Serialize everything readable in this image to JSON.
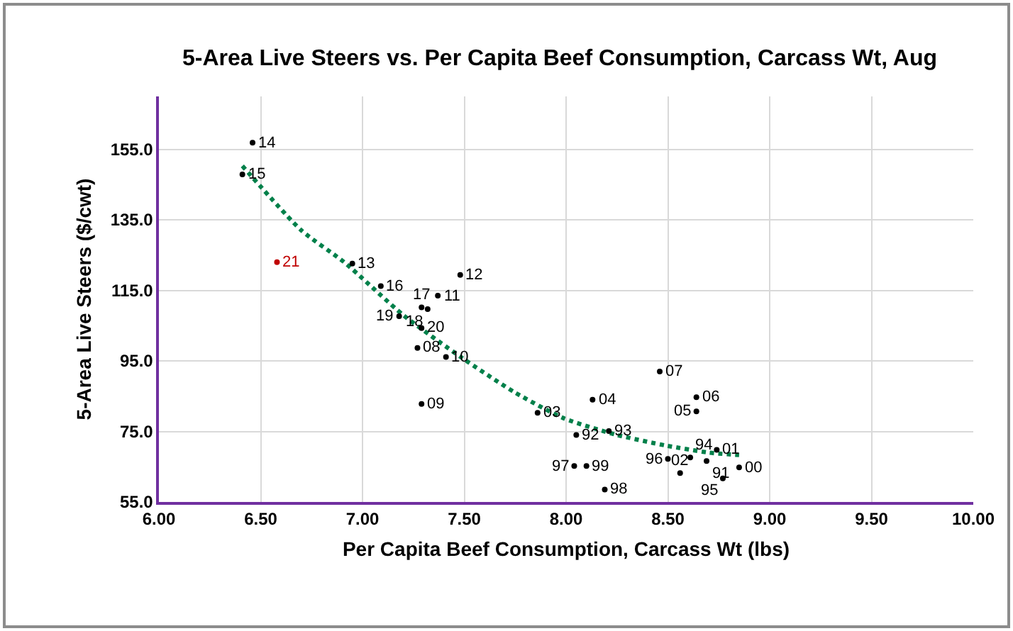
{
  "chart_data": {
    "type": "scatter",
    "title": "5-Area Live Steers vs. Per Capita Beef Consumption, Carcass Wt, Aug",
    "xlabel": "Per Capita Beef Consumption, Carcass Wt (lbs)",
    "ylabel": "5-Area Live Steers ($/cwt)",
    "xlim": [
      6,
      10
    ],
    "xticks": [
      {
        "value": 6,
        "label": "6.00"
      },
      {
        "value": 6.5,
        "label": "6.50"
      },
      {
        "value": 7,
        "label": "7.00"
      },
      {
        "value": 7.5,
        "label": "7.50"
      },
      {
        "value": 8,
        "label": "8.00"
      },
      {
        "value": 8.5,
        "label": "8.50"
      },
      {
        "value": 9,
        "label": "9.00"
      },
      {
        "value": 9.5,
        "label": "9.50"
      },
      {
        "value": 10,
        "label": "10.00"
      }
    ],
    "ylim": [
      55,
      170
    ],
    "yticks": [
      {
        "value": 55,
        "label": "55.0"
      },
      {
        "value": 75,
        "label": "75.0"
      },
      {
        "value": 95,
        "label": "95.0"
      },
      {
        "value": 115,
        "label": "115.0"
      },
      {
        "value": 135,
        "label": "135.0"
      },
      {
        "value": 155,
        "label": "155.0"
      }
    ],
    "grid": true,
    "series": [
      {
        "marker": "circle",
        "x": [
          6.46,
          6.41,
          6.58,
          6.95,
          7.09,
          7.48,
          7.37,
          7.29,
          7.32,
          7.18,
          7.29,
          7.27,
          7.41,
          7.29,
          7.86,
          8.46,
          8.13,
          8.64,
          8.64,
          8.05,
          8.21,
          8.04,
          8.1,
          8.19,
          8.5,
          8.56,
          8.61,
          8.69,
          8.74,
          8.77,
          8.85
        ],
        "values": [
          156.9,
          147.9,
          123.0,
          122.6,
          116.2,
          119.4,
          113.5,
          110.2,
          109.7,
          107.7,
          104.3,
          98.7,
          96.1,
          82.8,
          80.3,
          92.0,
          84.0,
          84.7,
          80.7,
          74.0,
          75.1,
          65.2,
          65.2,
          58.5,
          67.2,
          63.2,
          67.6,
          66.6,
          69.8,
          61.7,
          64.8
        ],
        "colors": [
          "#000000",
          "#000000",
          "#c00000",
          "#000000",
          "#000000",
          "#000000",
          "#000000",
          "#000000",
          "#000000",
          "#000000",
          "#000000",
          "#000000",
          "#000000",
          "#000000",
          "#000000",
          "#000000",
          "#000000",
          "#000000",
          "#000000",
          "#000000",
          "#000000",
          "#000000",
          "#000000",
          "#000000",
          "#000000",
          "#000000",
          "#000000",
          "#000000",
          "#000000",
          "#000000",
          "#000000"
        ]
      },
      {
        "type": "line",
        "color": "#00804a",
        "line_style": "dotted",
        "x": [
          6.41,
          6.7,
          6.91,
          7.2,
          7.49,
          7.75,
          7.99,
          8.25,
          8.49,
          8.7,
          8.85
        ],
        "values": [
          150.3,
          132,
          123,
          108,
          95.8,
          86,
          78.7,
          74,
          71,
          69,
          68.3
        ]
      }
    ],
    "annotations": [
      {
        "text": "14",
        "x": 6.46,
        "y": 156.9
      },
      {
        "text": "15",
        "x": 6.41,
        "y": 147.9
      },
      {
        "text": "21",
        "x": 6.58,
        "y": 123.0
      },
      {
        "text": "13",
        "x": 6.95,
        "y": 122.6
      },
      {
        "text": "16",
        "x": 7.09,
        "y": 116.2
      },
      {
        "text": "12",
        "x": 7.48,
        "y": 119.4
      },
      {
        "text": "11",
        "x": 7.37,
        "y": 113.5
      },
      {
        "text": "17",
        "x": 7.29,
        "y": 110.2
      },
      {
        "text": "18",
        "x": 7.32,
        "y": 109.7
      },
      {
        "text": "19",
        "x": 7.18,
        "y": 107.7
      },
      {
        "text": "20",
        "x": 7.29,
        "y": 104.3
      },
      {
        "text": "08",
        "x": 7.27,
        "y": 98.7
      },
      {
        "text": "10",
        "x": 7.41,
        "y": 96.1
      },
      {
        "text": "09",
        "x": 7.29,
        "y": 82.8
      },
      {
        "text": "03",
        "x": 7.86,
        "y": 80.3
      },
      {
        "text": "07",
        "x": 8.46,
        "y": 92.0
      },
      {
        "text": "04",
        "x": 8.13,
        "y": 84.0
      },
      {
        "text": "06",
        "x": 8.64,
        "y": 84.7
      },
      {
        "text": "05",
        "x": 8.64,
        "y": 80.7
      },
      {
        "text": "92",
        "x": 8.05,
        "y": 74.0
      },
      {
        "text": "93",
        "x": 8.21,
        "y": 75.1
      },
      {
        "text": "97",
        "x": 8.04,
        "y": 65.2
      },
      {
        "text": "99",
        "x": 8.1,
        "y": 65.2
      },
      {
        "text": "98",
        "x": 8.19,
        "y": 58.5
      },
      {
        "text": "96",
        "x": 8.5,
        "y": 67.2
      },
      {
        "text": "02",
        "x": 8.56,
        "y": 63.2
      },
      {
        "text": "94",
        "x": 8.61,
        "y": 67.6
      },
      {
        "text": "91",
        "x": 8.69,
        "y": 66.6
      },
      {
        "text": "01",
        "x": 8.74,
        "y": 69.8
      },
      {
        "text": "95",
        "x": 8.77,
        "y": 61.7
      },
      {
        "text": "00",
        "x": 8.85,
        "y": 64.8
      }
    ]
  }
}
